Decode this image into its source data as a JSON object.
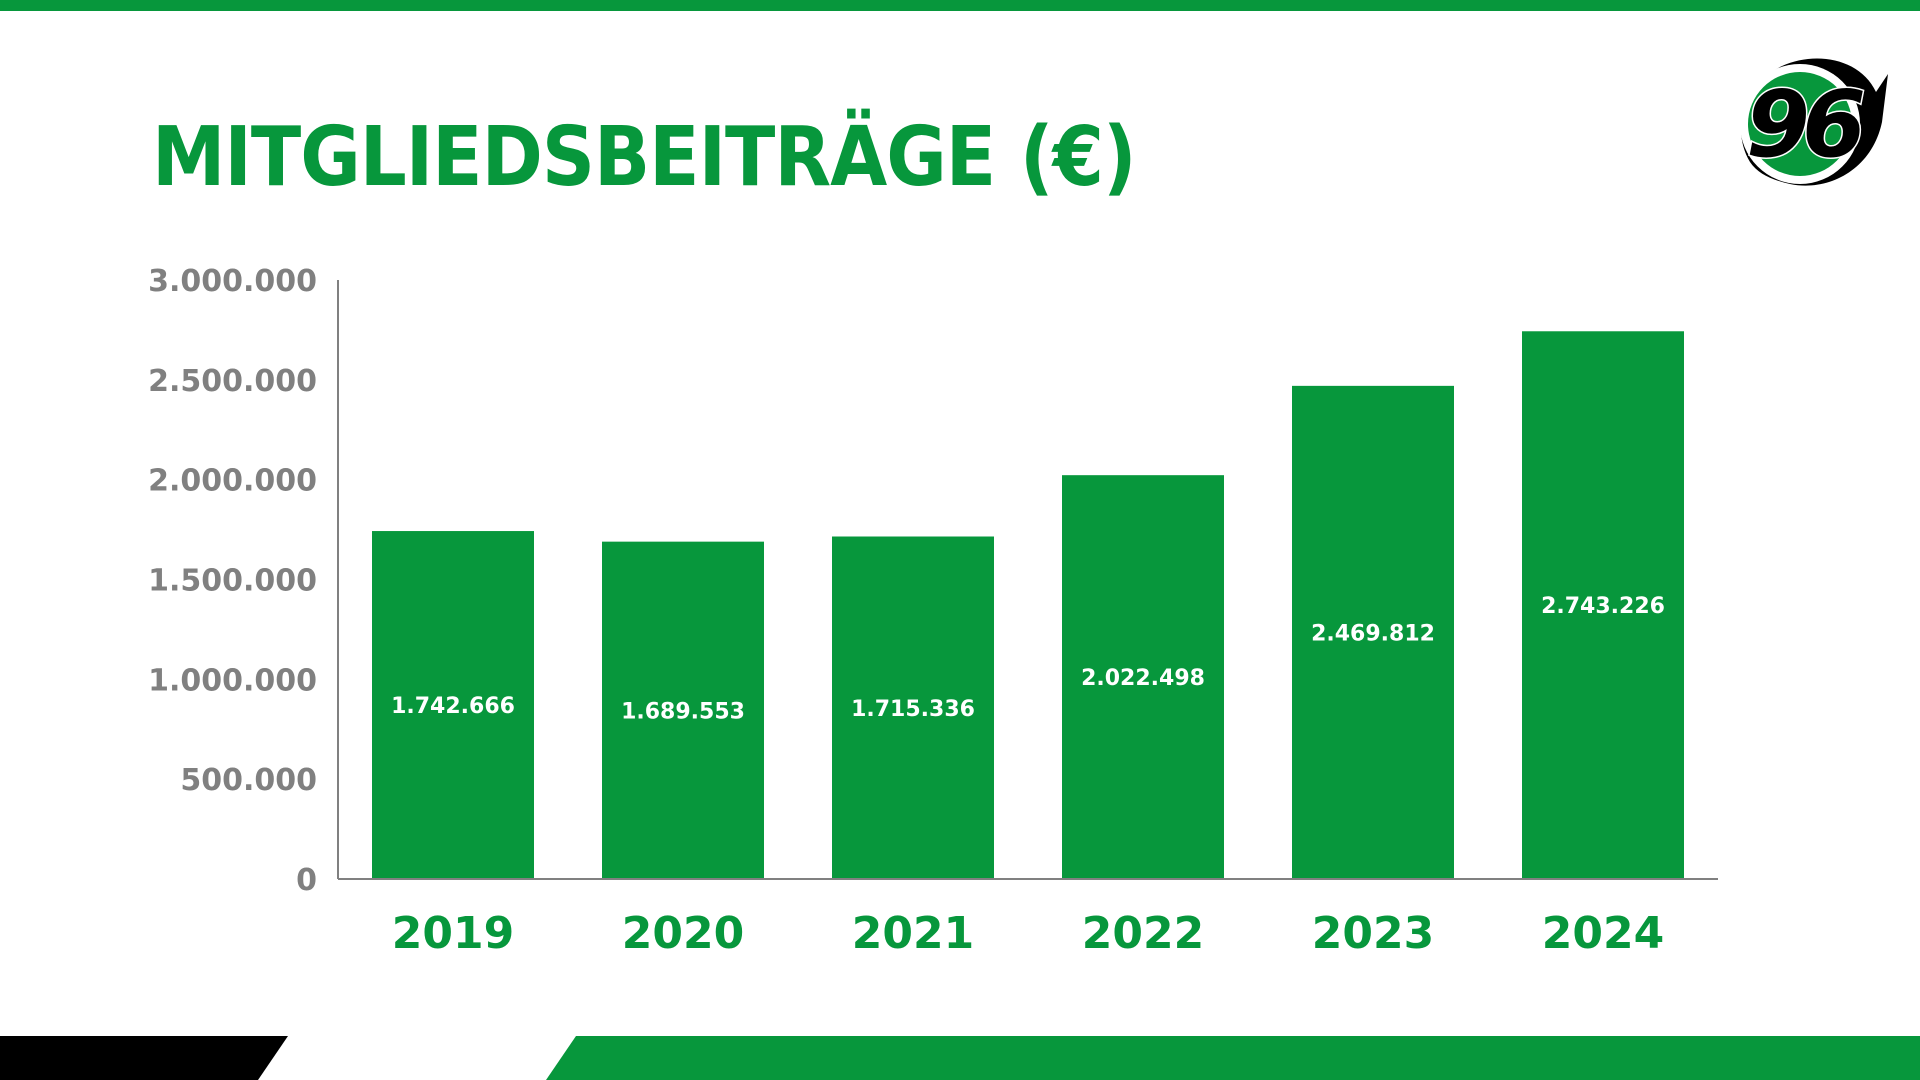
{
  "colors": {
    "brand_green": "#07973C",
    "axis_grey": "#808080",
    "black": "#000000",
    "white": "#ffffff"
  },
  "title": "MITGLIEDSBEITRÄGE (€)",
  "logo": {
    "icon": "hannover-96-logo-icon",
    "text": "96"
  },
  "chart_data": {
    "type": "bar",
    "categories": [
      "2019",
      "2020",
      "2021",
      "2022",
      "2023",
      "2024"
    ],
    "values": [
      1742666,
      1689553,
      1715336,
      2022498,
      2469812,
      2743226
    ],
    "value_labels": [
      "1.742.666",
      "1.689.553",
      "1.715.336",
      "2.022.498",
      "2.469.812",
      "2.743.226"
    ],
    "ylim": [
      0,
      3000000
    ],
    "y_ticks": [
      0,
      500000,
      1000000,
      1500000,
      2000000,
      2500000,
      3000000
    ],
    "y_tick_labels": [
      "0",
      "500.000",
      "1.000.000",
      "1.500.000",
      "2.000.000",
      "2.500.000",
      "3.000.000"
    ],
    "grid": false,
    "legend": "none"
  }
}
